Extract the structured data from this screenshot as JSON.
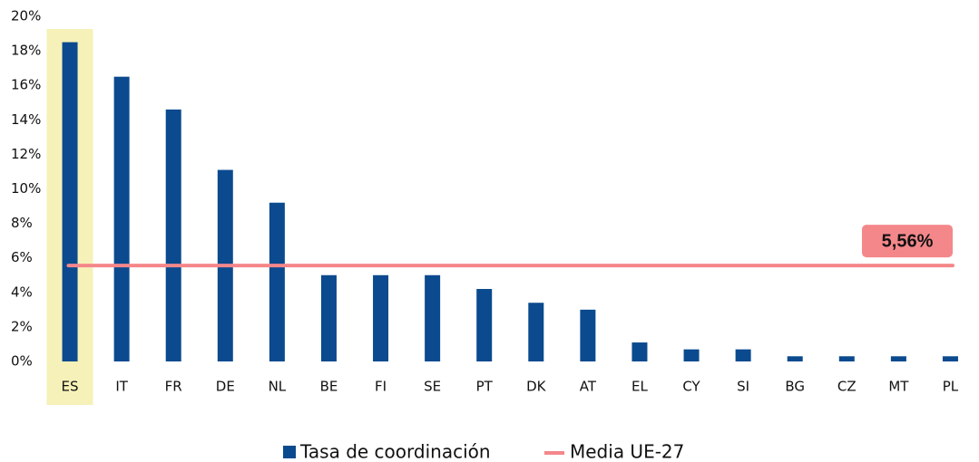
{
  "chart_data": {
    "type": "bar",
    "categories": [
      "ES",
      "IT",
      "FR",
      "DE",
      "NL",
      "BE",
      "FI",
      "SE",
      "PT",
      "DK",
      "AT",
      "EL",
      "CY",
      "SI",
      "BG",
      "CZ",
      "MT",
      "PL"
    ],
    "series": [
      {
        "name": "Tasa de coordinación",
        "color": "#0b4a8e",
        "values": [
          18.5,
          16.5,
          14.6,
          11.1,
          9.2,
          5.0,
          5.0,
          5.0,
          4.2,
          3.4,
          3.0,
          1.1,
          0.7,
          0.7,
          0.3,
          0.3,
          0.3,
          0.3
        ]
      }
    ],
    "reference": {
      "name": "Media UE-27",
      "value": 5.56,
      "value_label": "5,56%",
      "color": "#f4878a"
    },
    "highlight_index": 0,
    "highlight_color": "#f6f1b8",
    "ylim": [
      0,
      20
    ],
    "yticks": [
      {
        "value": 0,
        "label": "0%"
      },
      {
        "value": 2,
        "label": "2%"
      },
      {
        "value": 4,
        "label": "4%"
      },
      {
        "value": 6,
        "label": "6%"
      },
      {
        "value": 8,
        "label": "8%"
      },
      {
        "value": 10,
        "label": "10%"
      },
      {
        "value": 12,
        "label": "12%"
      },
      {
        "value": 14,
        "label": "14%"
      },
      {
        "value": 16,
        "label": "16%"
      },
      {
        "value": 18,
        "label": "18%"
      },
      {
        "value": 20,
        "label": "20%"
      }
    ],
    "grid": false
  }
}
